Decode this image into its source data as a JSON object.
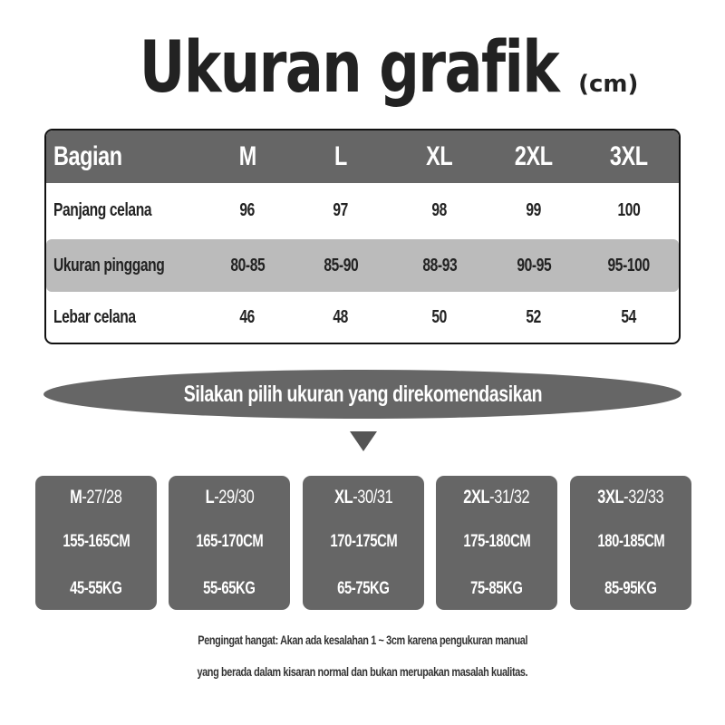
{
  "title": {
    "main": "Ukuran grafik",
    "unit": "(cm)"
  },
  "table": {
    "header": {
      "label": "Bagian",
      "sizes": [
        "M",
        "L",
        "XL",
        "2XL",
        "3XL"
      ]
    },
    "rows": [
      {
        "label": "Panjang celana",
        "values": [
          "96",
          "97",
          "98",
          "99",
          "100"
        ]
      },
      {
        "label": "Ukuran pinggang",
        "values": [
          "80-85",
          "85-90",
          "88-93",
          "90-95",
          "95-100"
        ]
      },
      {
        "label": "Lebar celana",
        "values": [
          "46",
          "48",
          "50",
          "52",
          "54"
        ]
      }
    ]
  },
  "banner": "Silakan pilih ukuran yang direkomendasikan",
  "cards": [
    {
      "size": "M",
      "waist": "-27/28",
      "height": "155-165CM",
      "weight": "45-55KG"
    },
    {
      "size": "L",
      "waist": "-29/30",
      "height": "165-170CM",
      "weight": "55-65KG"
    },
    {
      "size": "XL",
      "waist": "-30/31",
      "height": "170-175CM",
      "weight": "65-75KG"
    },
    {
      "size": "2XL",
      "waist": "-31/32",
      "height": "175-180CM",
      "weight": "75-85KG"
    },
    {
      "size": "3XL",
      "waist": "-32/33",
      "height": "180-185CM",
      "weight": "85-95KG"
    }
  ],
  "note": {
    "line1": "Pengingat hangat: Akan ada kesalahan 1 ~ 3cm karena pengukuran manual",
    "line2": "yang berada dalam kisaran normal dan bukan merupakan masalah kualitas."
  },
  "colors": {
    "dark_gray": "#666666",
    "light_gray": "#bbbbbb",
    "text": "#222222"
  }
}
